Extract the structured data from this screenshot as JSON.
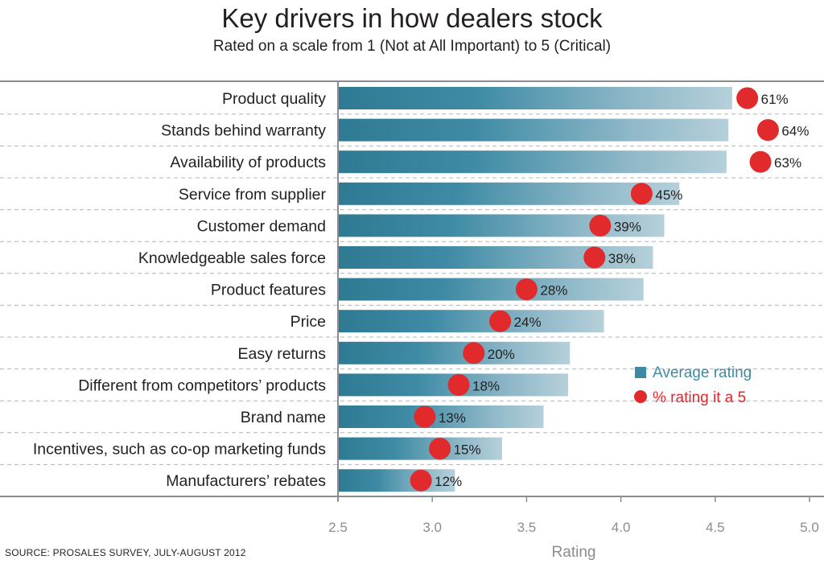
{
  "chart_data": {
    "type": "bar",
    "title": "Key drivers in how dealers stock",
    "subtitle": "Rated on a scale from 1 (Not at All Important) to 5 (Critical)",
    "xlabel": "Rating",
    "xlim": [
      2.5,
      5.0
    ],
    "xticks": [
      "2.5",
      "3.0",
      "3.5",
      "4.0",
      "4.5",
      "5.0"
    ],
    "categories": [
      "Product quality",
      "Stands behind warranty",
      "Availability of products",
      "Service from supplier",
      "Customer demand",
      "Knowledgeable sales force",
      "Product features",
      "Price",
      "Easy returns",
      "Different from competitors’ products",
      "Brand name",
      "Incentives, such as co-op marketing funds",
      "Manufacturers’ rebates"
    ],
    "series": [
      {
        "name": "Average rating",
        "color": "#3f8aa3",
        "values": [
          4.59,
          4.57,
          4.56,
          4.31,
          4.23,
          4.17,
          4.12,
          3.91,
          3.73,
          3.72,
          3.59,
          3.37,
          3.12
        ]
      },
      {
        "name": "% rating it a 5",
        "color": "#e02a2c",
        "labels": [
          "61%",
          "64%",
          "63%",
          "45%",
          "39%",
          "38%",
          "28%",
          "24%",
          "20%",
          "18%",
          "13%",
          "15%",
          "12%"
        ],
        "marker_positions": [
          4.67,
          4.78,
          4.74,
          4.11,
          3.89,
          3.86,
          3.5,
          3.36,
          3.22,
          3.14,
          2.96,
          3.04,
          2.94
        ]
      }
    ],
    "legend": {
      "position": "right",
      "items": [
        "Average rating",
        "% rating it a 5"
      ],
      "colors": [
        "#3f8aa3",
        "#e02a2c"
      ]
    },
    "grid": "dashed horizontal row separators"
  },
  "source": "SOURCE: PROSALES SURVEY, JULY-AUGUST 2012"
}
